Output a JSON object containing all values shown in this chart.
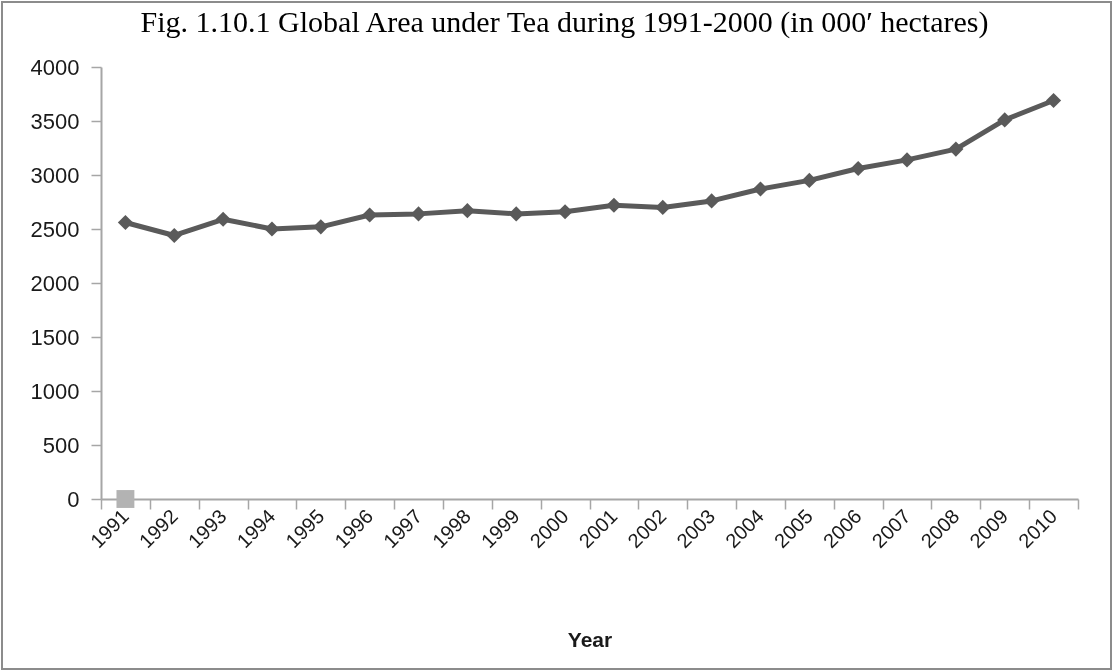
{
  "chart_data": {
    "type": "line",
    "title": "Fig. 1.10.1 Global Area under Tea during 1991-2000 (in 000′ hectares)",
    "xlabel": "Year",
    "categories": [
      "1991",
      "1992",
      "1993",
      "1994",
      "1995",
      "1996",
      "1997",
      "1998",
      "1999",
      "2000",
      "2001",
      "2002",
      "2003",
      "2004",
      "2005",
      "2006",
      "2007",
      "2008",
      "2009",
      "2010"
    ],
    "series": [
      {
        "color": "#5a5a5a",
        "marker": "diamond",
        "line_style": "solid",
        "values": [
          2560,
          2440,
          2590,
          2500,
          2520,
          2630,
          2640,
          2670,
          2640,
          2660,
          2720,
          2700,
          2760,
          2870,
          2950,
          3060,
          3140,
          3240,
          3510,
          3690
        ]
      },
      {
        "type": "scatter",
        "color": "#b3b3b3",
        "marker": "square",
        "values": [
          0,
          null,
          null,
          null,
          null,
          null,
          null,
          null,
          null,
          null,
          null,
          null,
          null,
          null,
          null,
          null,
          null,
          null,
          null,
          null
        ]
      }
    ],
    "ylim": [
      0,
      4000
    ],
    "yticks": [
      0,
      500,
      1000,
      1500,
      2000,
      2500,
      3000,
      3500,
      4000
    ],
    "grid": false
  }
}
